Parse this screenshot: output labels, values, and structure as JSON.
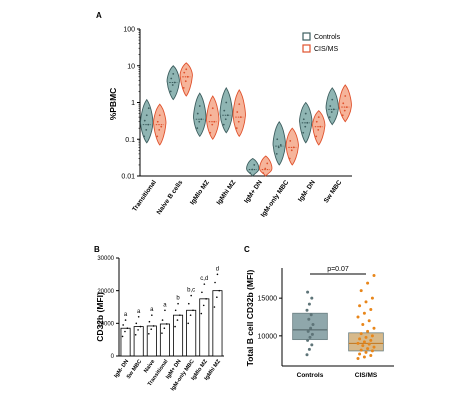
{
  "panels": {
    "a": "A",
    "b": "B",
    "c": "C"
  },
  "chart_data": [
    {
      "panel": "A",
      "type": "violin",
      "ylabel": "%PBMC",
      "yscale": "log",
      "ylim": [
        0.01,
        100
      ],
      "yticks": [
        0.01,
        0.1,
        1,
        10,
        100
      ],
      "ytick_labels": [
        "0.01",
        "0.1",
        "1",
        "10",
        "100"
      ],
      "categories": [
        "Transitional",
        "Naive B cells",
        "IgMlo MZ",
        "IgMhi MZ",
        "IgM+ DN",
        "IgM-only MBC",
        "IgM- DN",
        "Sw MBC"
      ],
      "legend": {
        "position": "top-right",
        "entries": [
          "Controls",
          "CIS/MS"
        ]
      },
      "series": [
        {
          "name": "Controls",
          "color": "#3d5e5f",
          "fill": "#8fb5b3",
          "medians": [
            0.25,
            3.5,
            0.35,
            0.45,
            0.015,
            0.065,
            0.28,
            0.65
          ],
          "ranges": [
            [
              0.08,
              1.2
            ],
            [
              1.2,
              10
            ],
            [
              0.12,
              1.8
            ],
            [
              0.15,
              2.5
            ],
            [
              0.01,
              0.03
            ],
            [
              0.02,
              0.3
            ],
            [
              0.08,
              1.0
            ],
            [
              0.25,
              2.5
            ]
          ],
          "points": [
            [
              0.12,
              0.18,
              0.25,
              0.32,
              0.45,
              0.7
            ],
            [
              2.0,
              3.0,
              3.5,
              4.5,
              6.0
            ],
            [
              0.2,
              0.3,
              0.35,
              0.5,
              0.8
            ],
            [
              0.25,
              0.35,
              0.45,
              0.6,
              1.0
            ],
            [
              0.012,
              0.015,
              0.02
            ],
            [
              0.04,
              0.06,
              0.07,
              0.1
            ],
            [
              0.15,
              0.22,
              0.28,
              0.35,
              0.5
            ],
            [
              0.4,
              0.55,
              0.65,
              0.8,
              1.2
            ]
          ]
        },
        {
          "name": "CIS/MS",
          "color": "#e0522d",
          "fill": "#f6b49a",
          "medians": [
            0.25,
            5.0,
            0.3,
            0.4,
            0.015,
            0.06,
            0.22,
            0.75
          ],
          "ranges": [
            [
              0.07,
              0.9
            ],
            [
              1.5,
              12
            ],
            [
              0.1,
              1.5
            ],
            [
              0.12,
              2.2
            ],
            [
              0.01,
              0.035
            ],
            [
              0.02,
              0.2
            ],
            [
              0.07,
              0.6
            ],
            [
              0.3,
              3.0
            ]
          ],
          "points": [
            [
              0.12,
              0.18,
              0.22,
              0.3,
              0.45
            ],
            [
              2.5,
              3.8,
              5.0,
              6.5,
              8.0
            ],
            [
              0.15,
              0.25,
              0.3,
              0.45,
              0.7
            ],
            [
              0.2,
              0.3,
              0.4,
              0.55,
              0.9
            ],
            [
              0.012,
              0.016,
              0.022
            ],
            [
              0.03,
              0.05,
              0.06,
              0.09
            ],
            [
              0.12,
              0.18,
              0.22,
              0.3,
              0.4
            ],
            [
              0.45,
              0.6,
              0.75,
              0.95,
              1.5
            ]
          ]
        }
      ],
      "title": "",
      "xlabel": ""
    },
    {
      "panel": "B",
      "type": "bar",
      "ylabel": "CD32b (MFI)",
      "ylim": [
        0,
        30000
      ],
      "yticks": [
        0,
        10000,
        20000,
        30000
      ],
      "ytick_labels": [
        "0",
        "10000",
        "20000",
        "30000"
      ],
      "categories": [
        "IgM- DN",
        "Sw MBC",
        "Naive",
        "Transitional",
        "IgM+ DN",
        "IgM-only MBC",
        "IgMlo MZ",
        "IgMhi MZ"
      ],
      "values": [
        8500,
        9000,
        9200,
        9800,
        12500,
        14000,
        17500,
        20000
      ],
      "annotations": [
        "a",
        "a",
        "a",
        "a",
        "b",
        "b,c",
        "c,d",
        "d"
      ],
      "points": [
        [
          6000,
          7500,
          8500,
          9500,
          11000
        ],
        [
          6500,
          8000,
          9000,
          10000,
          12000
        ],
        [
          6800,
          8200,
          9200,
          10500,
          12500
        ],
        [
          7000,
          8500,
          9800,
          11000,
          14000
        ],
        [
          9000,
          11000,
          12500,
          14000,
          16000
        ],
        [
          10000,
          12500,
          14000,
          16000,
          18500
        ],
        [
          13000,
          15500,
          17500,
          19500,
          22000
        ],
        [
          15000,
          18000,
          20000,
          22500,
          25000
        ]
      ],
      "title": "",
      "xlabel": ""
    },
    {
      "panel": "C",
      "type": "box",
      "ylabel": "Total B cell CD32b (MFI)",
      "ylim": [
        6000,
        19000
      ],
      "yticks": [
        10000,
        15000
      ],
      "ytick_labels": [
        "10000",
        "15000"
      ],
      "categories": [
        "Controls",
        "CIS/MS"
      ],
      "annotation": "p=0.07",
      "boxes": [
        {
          "name": "Controls",
          "q1": 9500,
          "median": 10800,
          "q3": 13000,
          "fill": "#8fa7ab",
          "point_color": "#5e7478",
          "points": [
            7500,
            8200,
            8800,
            9400,
            9800,
            10200,
            10600,
            11000,
            11500,
            12200,
            12800,
            13400,
            14200,
            15000,
            15800
          ]
        },
        {
          "name": "CIS/MS",
          "q1": 8000,
          "median": 9000,
          "q3": 10400,
          "fill": "#d7b98a",
          "point_color": "#e8861a",
          "points": [
            7000,
            7200,
            7400,
            7600,
            7800,
            8000,
            8100,
            8300,
            8500,
            8700,
            8900,
            9000,
            9200,
            9400,
            9600,
            9800,
            10000,
            10300,
            10600,
            11000,
            11500,
            12000,
            12500,
            13000,
            13500,
            14000,
            14500,
            15000,
            16000,
            17000,
            18000
          ]
        }
      ],
      "title": "",
      "xlabel": ""
    }
  ]
}
